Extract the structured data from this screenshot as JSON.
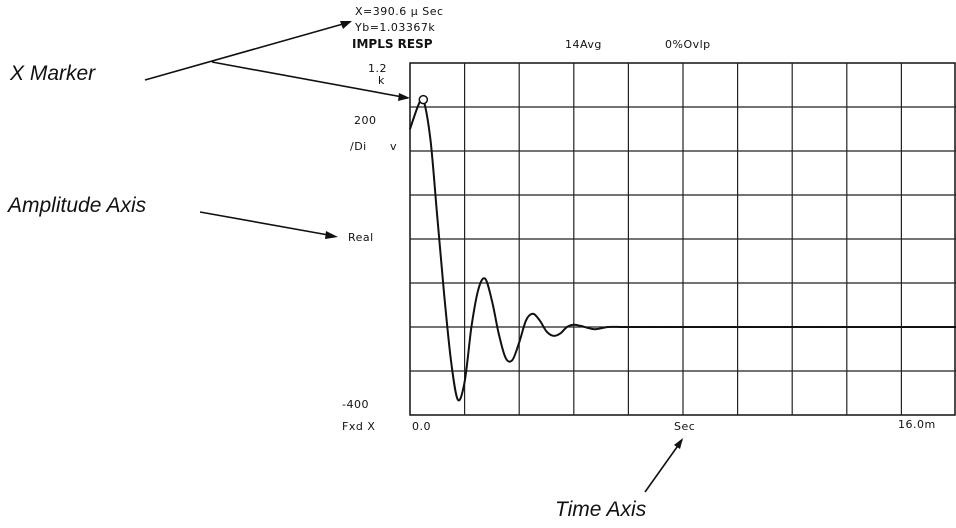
{
  "marker_readout": {
    "x_readout": "X=390.6   μ Sec",
    "y_readout": "Yb=1.03367k"
  },
  "header": {
    "measurement": "IMPLS RESP",
    "average": "14Avg",
    "overlap": "0%Ovlp"
  },
  "y_axis": {
    "top_value": "1.2",
    "top_unit": "k",
    "ref_value": "200",
    "scale_label": "/Di",
    "scale_unit": "v",
    "mode_label": "Real",
    "bottom_value": "-400"
  },
  "x_axis": {
    "mode_label": "Fxd X",
    "start_value": "0.0",
    "unit_label": "Sec",
    "end_value": "16.0m"
  },
  "callouts": {
    "x_marker": "X Marker",
    "amplitude_axis": "Amplitude Axis",
    "time_axis": "Time Axis"
  },
  "colors": {
    "trace": "#111111",
    "grid": "#222222",
    "background": "#ffffff"
  },
  "chart_data": {
    "type": "line",
    "xlim": [
      0,
      0.016
    ],
    "ylim": [
      -400,
      1200
    ],
    "grid": true,
    "x_divisions": 10,
    "y_divisions": 8,
    "marker": {
      "x": 0.0003906,
      "y": 1033.67
    },
    "series": [
      {
        "x": [
          0,
          0.00025,
          0.00039,
          0.0006,
          0.0008,
          0.001,
          0.0012,
          0.0014,
          0.0016,
          0.0018,
          0.002,
          0.0022,
          0.0024,
          0.0026,
          0.0028,
          0.003,
          0.0032,
          0.0034,
          0.0036,
          0.0038,
          0.004,
          0.0042,
          0.0044,
          0.0046,
          0.0048,
          0.005,
          0.0054,
          0.0058,
          0.0062,
          0.0066,
          0.007,
          0.0075,
          0.008,
          0.009,
          0.01,
          0.012,
          0.014,
          0.016
        ],
        "y": [
          900,
          1010,
          1034,
          850,
          500,
          150,
          -150,
          -330,
          -250,
          0,
          170,
          220,
          120,
          -30,
          -140,
          -150,
          -70,
          30,
          60,
          30,
          -20,
          -40,
          -30,
          0,
          10,
          5,
          -10,
          0,
          0,
          0,
          0,
          0,
          0,
          0,
          0,
          0,
          0,
          0
        ]
      }
    ]
  }
}
